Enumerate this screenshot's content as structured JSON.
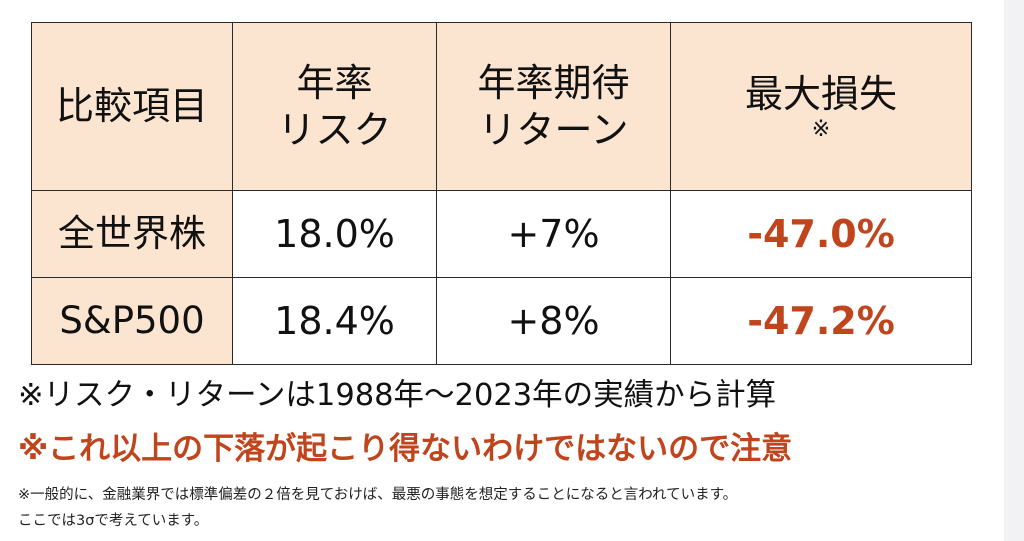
{
  "table": {
    "header": {
      "item": "比較項目",
      "risk_line1": "年率",
      "risk_line2": "リスク",
      "return_line1": "年率期待",
      "return_line2": "リターン",
      "maxloss_line1": "最大損失",
      "maxloss_note": "※"
    },
    "rows": [
      {
        "name": "全世界株",
        "risk": "18.0%",
        "return": "+7%",
        "max_loss": "-47.0%"
      },
      {
        "name": "S&P500",
        "risk": "18.4%",
        "return": "+8%",
        "max_loss": "-47.2%"
      }
    ]
  },
  "notes": {
    "period": "※リスク・リターンは1988年〜2023年の実績から計算",
    "warning": "※これ以上の下落が起こり得ないわけではないので注意",
    "footnote_line1": "※一般的に、金融業界では標準偏差の２倍を見ておけば、最悪の事態を想定することになると言われています。",
    "footnote_line2": "ここでは3σで考えています。"
  },
  "colors": {
    "header_bg": "#fbe5d0",
    "accent_red": "#c0451c",
    "border": "#2a2a2a"
  }
}
